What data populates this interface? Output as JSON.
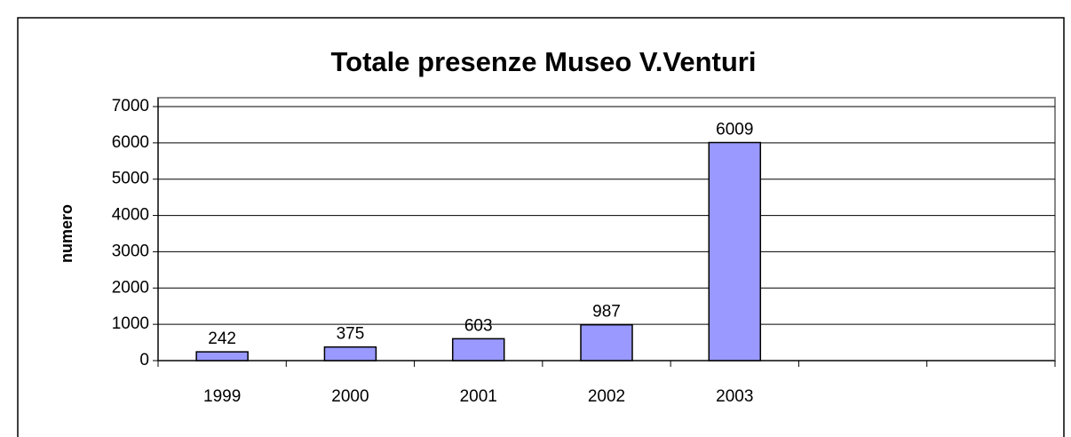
{
  "chart_data": {
    "type": "bar",
    "title": "Totale presenze Museo V.Venturi",
    "y_label": "numero",
    "categories": [
      "1999",
      "2000",
      "2001",
      "2002",
      "2003",
      null,
      null
    ],
    "values": [
      242,
      375,
      603,
      987,
      6009,
      null,
      null
    ],
    "color": "#9999ff",
    "ylim": [
      0,
      7000
    ],
    "yticks": [
      0,
      1000,
      2000,
      3000,
      4000,
      5000,
      6000,
      7000
    ],
    "grid": true
  }
}
